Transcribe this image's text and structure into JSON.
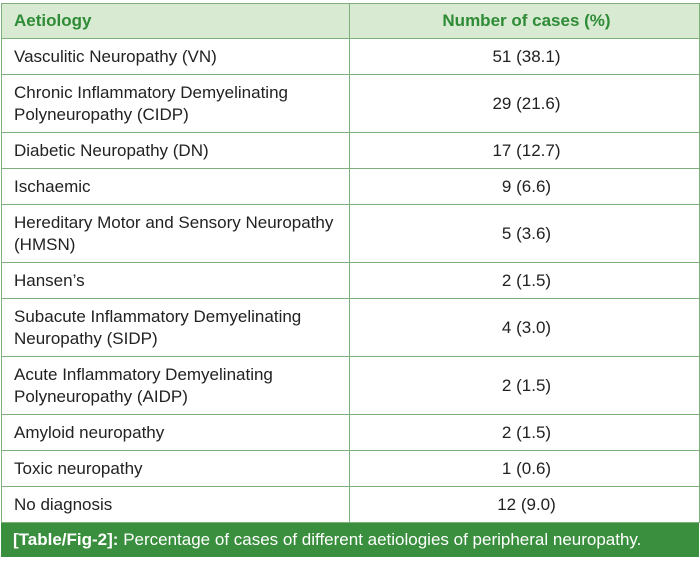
{
  "table": {
    "headers": {
      "aetiology": "Aetiology",
      "cases": "Number of cases (%)"
    },
    "rows": [
      {
        "aetiology": "Vasculitic Neuropathy (VN)",
        "cases": "51 (38.1)"
      },
      {
        "aetiology": "Chronic Inflammatory Demyelinating Polyneuropathy (CIDP)",
        "cases": "29 (21.6)"
      },
      {
        "aetiology": "Diabetic Neuropathy (DN)",
        "cases": "17 (12.7)"
      },
      {
        "aetiology": "Ischaemic",
        "cases": "9 (6.6)"
      },
      {
        "aetiology": "Hereditary Motor and Sensory Neuropathy (HMSN)",
        "cases": "5 (3.6)"
      },
      {
        "aetiology": "Hansen’s",
        "cases": "2 (1.5)"
      },
      {
        "aetiology": "Subacute Inflammatory Demyelinating Neuropathy (SIDP)",
        "cases": "4 (3.0)"
      },
      {
        "aetiology": "Acute Inflammatory Demyelinating Polyneuropathy (AIDP)",
        "cases": "2 (1.5)"
      },
      {
        "aetiology": "Amyloid neuropathy",
        "cases": "2 (1.5)"
      },
      {
        "aetiology": "Toxic neuropathy",
        "cases": "1 (0.6)"
      },
      {
        "aetiology": "No diagnosis",
        "cases": "12 (9.0)"
      }
    ]
  },
  "caption": {
    "label": "[Table/Fig-2]:",
    "text": "Percentage of cases of different aetiologies of peripheral neuropathy."
  },
  "colors": {
    "header_bg": "#d9ead2",
    "header_text": "#2e8b36",
    "border": "#7db07b",
    "caption_bg": "#3a8f3e"
  }
}
